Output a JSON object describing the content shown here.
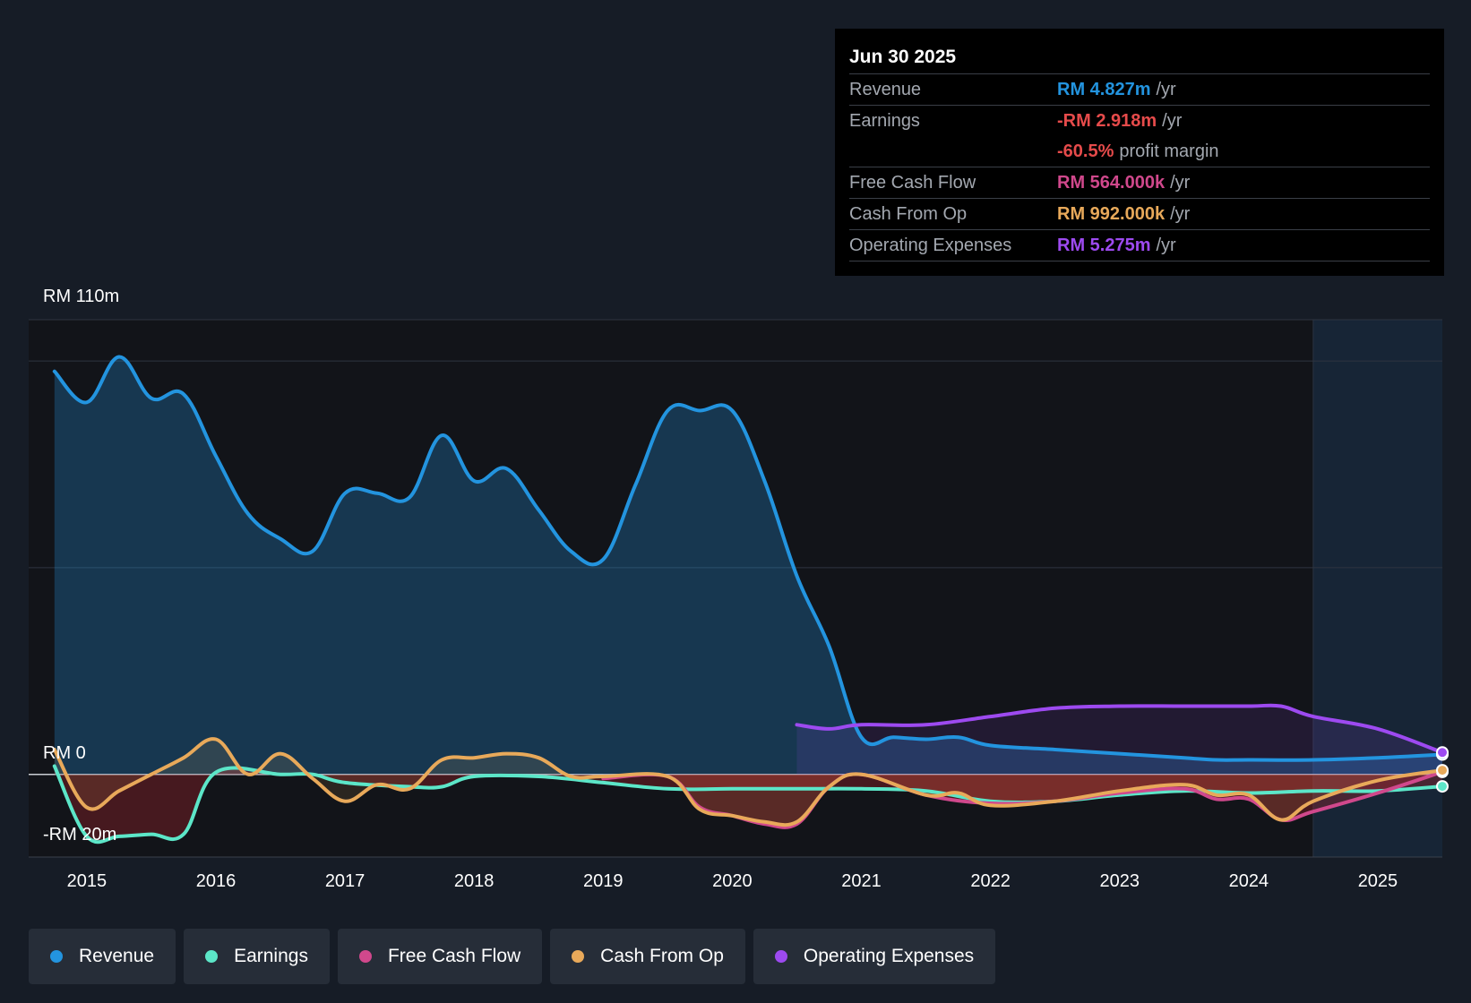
{
  "tooltip": {
    "date": "Jun 30 2025",
    "rows": [
      {
        "label": "Revenue",
        "value": "RM 4.827m",
        "unit": "/yr",
        "color": "#2394df"
      },
      {
        "label": "Earnings",
        "value": "-RM 2.918m",
        "unit": "/yr",
        "color": "#e64b4b"
      },
      {
        "label": "",
        "value": "-60.5%",
        "unit": "profit margin",
        "color": "#e64b4b"
      },
      {
        "label": "Free Cash Flow",
        "value": "RM 564.000k",
        "unit": "/yr",
        "color": "#d0488c"
      },
      {
        "label": "Cash From Op",
        "value": "RM 992.000k",
        "unit": "/yr",
        "color": "#e8a95a"
      },
      {
        "label": "Operating Expenses",
        "value": "RM 5.275m",
        "unit": "/yr",
        "color": "#9d4af0"
      }
    ]
  },
  "legend": [
    {
      "label": "Revenue",
      "color": "#2394df"
    },
    {
      "label": "Earnings",
      "color": "#5ce6c8"
    },
    {
      "label": "Free Cash Flow",
      "color": "#d0488c"
    },
    {
      "label": "Cash From Op",
      "color": "#e8a95a"
    },
    {
      "label": "Operating Expenses",
      "color": "#9d4af0"
    }
  ],
  "chart_data": {
    "type": "line",
    "y_top_label": "RM 110m",
    "y_zero_label": "RM 0",
    "y_bottom_label": "-RM 20m",
    "ylim": [
      -20,
      110
    ],
    "xlim": [
      2014.55,
      2025.5
    ],
    "forecast_start": 2024.5,
    "x_ticks": [
      2015,
      2016,
      2017,
      2018,
      2019,
      2020,
      2021,
      2022,
      2023,
      2024,
      2025
    ],
    "gridlines": [
      0,
      50,
      100,
      110
    ],
    "grid": true,
    "series": [
      {
        "name": "Revenue",
        "color": "#2394df",
        "fill": true,
        "x": [
          2014.75,
          2015.0,
          2015.25,
          2015.5,
          2015.75,
          2016.0,
          2016.25,
          2016.5,
          2016.75,
          2017.0,
          2017.25,
          2017.5,
          2017.75,
          2018.0,
          2018.25,
          2018.5,
          2018.75,
          2019.0,
          2019.25,
          2019.5,
          2019.75,
          2020.0,
          2020.25,
          2020.5,
          2020.75,
          2021.0,
          2021.25,
          2021.5,
          2021.75,
          2022.0,
          2022.5,
          2023.0,
          2023.5,
          2023.75,
          2024.0,
          2024.5,
          2025.0,
          2025.5
        ],
        "y": [
          97.5,
          90,
          101,
          91,
          92,
          77,
          63,
          57,
          54,
          68,
          68,
          67,
          82,
          71,
          74,
          64,
          54,
          52,
          70,
          88,
          88,
          88,
          71,
          48,
          31,
          9,
          9,
          8.5,
          9,
          7,
          6,
          5,
          4,
          3.5,
          3.5,
          3.5,
          4,
          4.8
        ]
      },
      {
        "name": "Earnings",
        "color": "#5ce6c8",
        "fill": false,
        "x": [
          2014.75,
          2015.0,
          2015.25,
          2015.5,
          2015.75,
          2016.0,
          2016.5,
          2016.75,
          2017.0,
          2017.5,
          2017.75,
          2018.0,
          2018.5,
          2019.0,
          2019.5,
          2020.0,
          2020.5,
          2021.0,
          2021.5,
          2022.0,
          2022.5,
          2023.0,
          2023.5,
          2024.0,
          2024.5,
          2025.0,
          2025.5
        ],
        "y": [
          2,
          -15,
          -15,
          -14.5,
          -14.5,
          0.5,
          0,
          0,
          -2,
          -3,
          -3,
          -0.5,
          -0.5,
          -2,
          -3.5,
          -3.5,
          -3.5,
          -3.5,
          -4,
          -6.5,
          -6.5,
          -5,
          -4,
          -4.5,
          -4,
          -4,
          -2.9
        ]
      },
      {
        "name": "Free Cash Flow",
        "color": "#d0488c",
        "fill": false,
        "x": [
          2019.0,
          2019.5,
          2019.75,
          2020.0,
          2020.25,
          2020.5,
          2020.75,
          2021.0,
          2021.5,
          2022.0,
          2022.5,
          2023.0,
          2023.5,
          2023.75,
          2024.0,
          2024.25,
          2024.5,
          2025.0,
          2025.5
        ],
        "y": [
          -1,
          -0.5,
          -8,
          -10,
          -12,
          -12,
          -3,
          0,
          -5,
          -7,
          -6.5,
          -4.5,
          -3.5,
          -6,
          -6,
          -11,
          -9,
          -4.5,
          0.6
        ]
      },
      {
        "name": "Cash From Op",
        "color": "#e8a95a",
        "fill": false,
        "x": [
          2014.75,
          2015.0,
          2015.25,
          2015.5,
          2015.75,
          2016.0,
          2016.25,
          2016.5,
          2016.75,
          2017.0,
          2017.25,
          2017.5,
          2017.75,
          2018.0,
          2018.25,
          2018.5,
          2018.75,
          2019.0,
          2019.5,
          2019.75,
          2020.0,
          2020.25,
          2020.5,
          2020.75,
          2021.0,
          2021.5,
          2021.75,
          2022.0,
          2022.5,
          2023.0,
          2023.5,
          2023.75,
          2024.0,
          2024.25,
          2024.5,
          2025.0,
          2025.5
        ],
        "y": [
          6,
          -8,
          -4,
          0,
          4,
          8.5,
          0,
          5,
          -1,
          -6.5,
          -2.5,
          -3.5,
          3.5,
          4,
          5,
          4,
          -0.5,
          -0.5,
          -0.5,
          -8.5,
          -10,
          -11.5,
          -11.5,
          -3,
          0,
          -5,
          -4.5,
          -7.5,
          -6.5,
          -4,
          -2.5,
          -5,
          -5,
          -11,
          -6.5,
          -1.5,
          1
        ]
      },
      {
        "name": "Operating Expenses",
        "color": "#9d4af0",
        "fill": false,
        "x": [
          2020.5,
          2020.75,
          2021.0,
          2021.5,
          2022.0,
          2022.5,
          2023.0,
          2023.5,
          2024.0,
          2024.25,
          2024.5,
          2025.0,
          2025.5
        ],
        "y": [
          12,
          11,
          12,
          12,
          14,
          16,
          16.5,
          16.5,
          16.5,
          16.5,
          14,
          11,
          5.3
        ]
      }
    ]
  }
}
